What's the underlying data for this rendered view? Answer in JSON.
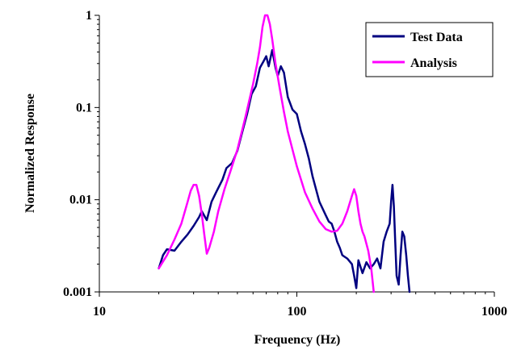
{
  "chart_data": {
    "type": "line",
    "title": "",
    "xlabel": "Frequency (Hz)",
    "ylabel": "Normalized Response",
    "x_scale": "log",
    "y_scale": "log",
    "xlim": [
      10,
      1000
    ],
    "ylim": [
      0.001,
      1
    ],
    "x_ticks": [
      10,
      100,
      1000
    ],
    "x_tick_labels": [
      "10",
      "100",
      "1000"
    ],
    "y_ticks": [
      0.001,
      0.01,
      0.1,
      1
    ],
    "y_tick_labels": [
      "0.001",
      "0.01",
      "0.1",
      "1"
    ],
    "grid": false,
    "legend_position": "top-right",
    "series": [
      {
        "name": "Test Data",
        "color": "#000080",
        "points": [
          [
            20,
            0.0018
          ],
          [
            21,
            0.0025
          ],
          [
            22,
            0.0029
          ],
          [
            24,
            0.0028
          ],
          [
            26,
            0.0035
          ],
          [
            28,
            0.0042
          ],
          [
            30,
            0.0052
          ],
          [
            32,
            0.0065
          ],
          [
            33,
            0.0075
          ],
          [
            35,
            0.006
          ],
          [
            37,
            0.0095
          ],
          [
            39,
            0.012
          ],
          [
            42,
            0.0165
          ],
          [
            44,
            0.022
          ],
          [
            47,
            0.025
          ],
          [
            50,
            0.034
          ],
          [
            53,
            0.055
          ],
          [
            56,
            0.085
          ],
          [
            59,
            0.14
          ],
          [
            62,
            0.17
          ],
          [
            65,
            0.27
          ],
          [
            68,
            0.32
          ],
          [
            70,
            0.36
          ],
          [
            72,
            0.28
          ],
          [
            75,
            0.42
          ],
          [
            78,
            0.27
          ],
          [
            80,
            0.22
          ],
          [
            83,
            0.28
          ],
          [
            86,
            0.24
          ],
          [
            90,
            0.13
          ],
          [
            95,
            0.095
          ],
          [
            100,
            0.085
          ],
          [
            105,
            0.055
          ],
          [
            110,
            0.04
          ],
          [
            115,
            0.028
          ],
          [
            120,
            0.018
          ],
          [
            125,
            0.013
          ],
          [
            130,
            0.0095
          ],
          [
            135,
            0.008
          ],
          [
            140,
            0.0068
          ],
          [
            145,
            0.0058
          ],
          [
            150,
            0.0055
          ],
          [
            155,
            0.0045
          ],
          [
            160,
            0.0035
          ],
          [
            165,
            0.003
          ],
          [
            170,
            0.0025
          ],
          [
            180,
            0.0023
          ],
          [
            190,
            0.002
          ],
          [
            195,
            0.0015
          ],
          [
            200,
            0.0011
          ],
          [
            205,
            0.0022
          ],
          [
            215,
            0.0016
          ],
          [
            225,
            0.0021
          ],
          [
            235,
            0.0018
          ],
          [
            245,
            0.002
          ],
          [
            255,
            0.0023
          ],
          [
            265,
            0.0018
          ],
          [
            275,
            0.0035
          ],
          [
            285,
            0.0045
          ],
          [
            295,
            0.0055
          ],
          [
            300,
            0.0095
          ],
          [
            305,
            0.0145
          ],
          [
            310,
            0.0085
          ],
          [
            315,
            0.0035
          ],
          [
            320,
            0.0015
          ],
          [
            328,
            0.0012
          ],
          [
            335,
            0.0025
          ],
          [
            342,
            0.0045
          ],
          [
            350,
            0.004
          ],
          [
            358,
            0.0025
          ],
          [
            365,
            0.0015
          ],
          [
            372,
            0.001
          ]
        ]
      },
      {
        "name": "Analysis",
        "color": "#ff00ff",
        "points": [
          [
            20,
            0.0018
          ],
          [
            22,
            0.0025
          ],
          [
            24,
            0.0037
          ],
          [
            26,
            0.0055
          ],
          [
            28,
            0.0095
          ],
          [
            29,
            0.0125
          ],
          [
            30,
            0.0145
          ],
          [
            31,
            0.0145
          ],
          [
            32,
            0.011
          ],
          [
            33,
            0.007
          ],
          [
            34,
            0.0042
          ],
          [
            35,
            0.0026
          ],
          [
            36,
            0.003
          ],
          [
            38,
            0.0045
          ],
          [
            40,
            0.0075
          ],
          [
            43,
            0.013
          ],
          [
            46,
            0.02
          ],
          [
            50,
            0.035
          ],
          [
            55,
            0.08
          ],
          [
            60,
            0.18
          ],
          [
            63,
            0.3
          ],
          [
            65,
            0.45
          ],
          [
            67,
            0.75
          ],
          [
            69,
            1.0
          ],
          [
            71,
            1.0
          ],
          [
            73,
            0.8
          ],
          [
            75,
            0.55
          ],
          [
            78,
            0.3
          ],
          [
            82,
            0.16
          ],
          [
            86,
            0.09
          ],
          [
            90,
            0.055
          ],
          [
            95,
            0.035
          ],
          [
            100,
            0.023
          ],
          [
            110,
            0.012
          ],
          [
            120,
            0.008
          ],
          [
            130,
            0.0058
          ],
          [
            140,
            0.0048
          ],
          [
            150,
            0.0045
          ],
          [
            160,
            0.0046
          ],
          [
            170,
            0.0055
          ],
          [
            180,
            0.0075
          ],
          [
            190,
            0.011
          ],
          [
            195,
            0.013
          ],
          [
            200,
            0.011
          ],
          [
            205,
            0.0075
          ],
          [
            210,
            0.0055
          ],
          [
            215,
            0.0045
          ],
          [
            220,
            0.004
          ],
          [
            230,
            0.0028
          ],
          [
            238,
            0.0018
          ],
          [
            245,
            0.001
          ]
        ]
      }
    ]
  }
}
